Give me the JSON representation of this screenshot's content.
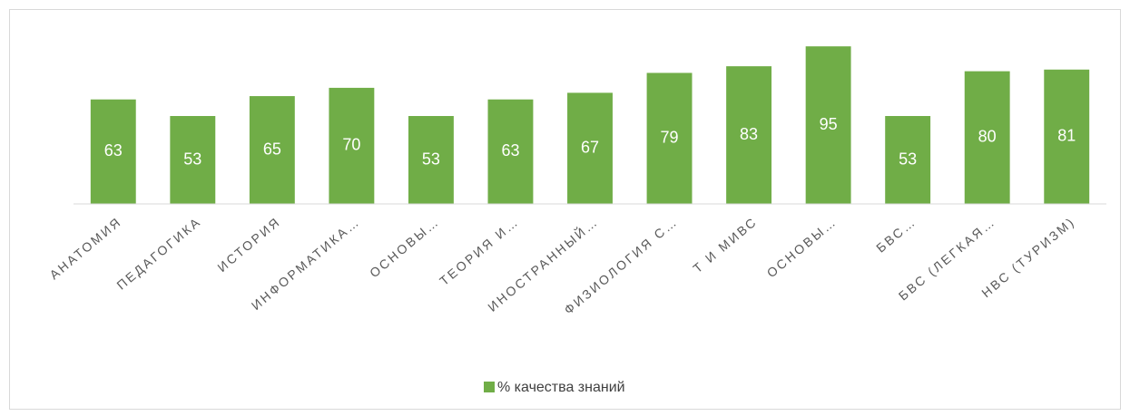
{
  "chart_data": {
    "type": "bar",
    "categories": [
      "АНАТОМИЯ",
      "ПЕДАГОГИКА",
      "ИСТОРИЯ",
      "ИНФОРМАТИКА…",
      "ОСНОВЫ…",
      "ТЕОРИЯ И…",
      "ИНОСТРАННЫЙ…",
      "ФИЗИОЛОГИЯ С…",
      "Т И МИВС",
      "ОСНОВЫ…",
      "БВС…",
      "БВС (ЛЕГКАЯ…",
      "НВС (ТУРИЗМ)"
    ],
    "series": [
      {
        "name": "% качества знаний",
        "color": "#70ad47",
        "values": [
          63,
          53,
          65,
          70,
          53,
          63,
          67,
          79,
          83,
          95,
          53,
          80,
          81
        ]
      }
    ],
    "ylim": [
      0,
      100
    ],
    "legend": "bottom"
  }
}
